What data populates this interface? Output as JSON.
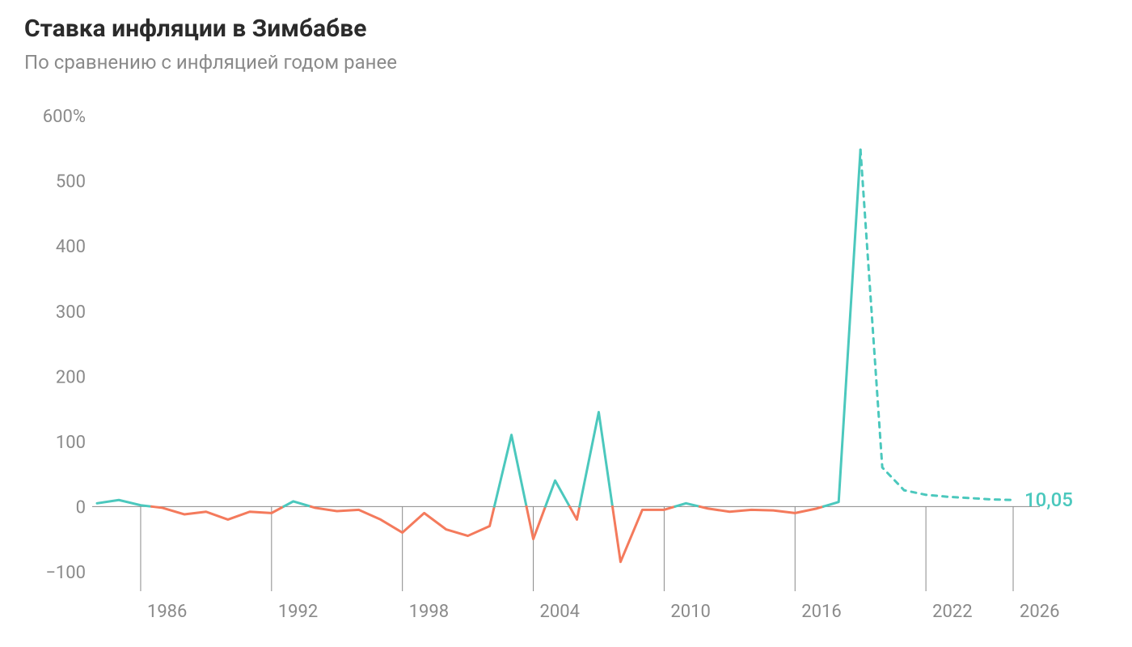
{
  "title": "Ставка инфляции в Зимбабве",
  "subtitle": "По сравнению с инфляцией годом ранее",
  "chart": {
    "type": "line",
    "background_color": "#ffffff",
    "colors": {
      "positive": "#4bc8bd",
      "negative": "#f47a5c",
      "projection": "#4bc8bd",
      "axis": "#8a8a8a",
      "text": "#8a8a8a",
      "title_text": "#2b2b2b"
    },
    "stroke_width": 3,
    "projection_dash": "6,7",
    "x": {
      "min": 1984,
      "max": 2027,
      "ticks": [
        1986,
        1992,
        1998,
        2004,
        2010,
        2016,
        2022,
        2026
      ]
    },
    "y": {
      "min": -130,
      "max": 640,
      "zero_line": 0,
      "ticks": [
        -100,
        0,
        100,
        200,
        300,
        400,
        500,
        600
      ],
      "tick_suffix_first": "%"
    },
    "end_annotation": {
      "label": "10,05",
      "value": 10.05,
      "color": "#4bc8bd"
    },
    "data": [
      {
        "year": 1984,
        "value": 5
      },
      {
        "year": 1985,
        "value": 10
      },
      {
        "year": 1986,
        "value": 2
      },
      {
        "year": 1987,
        "value": -2
      },
      {
        "year": 1988,
        "value": -12
      },
      {
        "year": 1989,
        "value": -8
      },
      {
        "year": 1990,
        "value": -20
      },
      {
        "year": 1991,
        "value": -8
      },
      {
        "year": 1992,
        "value": -10
      },
      {
        "year": 1993,
        "value": 8
      },
      {
        "year": 1994,
        "value": -2
      },
      {
        "year": 1995,
        "value": -7
      },
      {
        "year": 1996,
        "value": -5
      },
      {
        "year": 1997,
        "value": -20
      },
      {
        "year": 1998,
        "value": -40
      },
      {
        "year": 1999,
        "value": -10
      },
      {
        "year": 2000,
        "value": -35
      },
      {
        "year": 2001,
        "value": -45
      },
      {
        "year": 2002,
        "value": -30
      },
      {
        "year": 2003,
        "value": 110
      },
      {
        "year": 2004,
        "value": -50
      },
      {
        "year": 2005,
        "value": 40
      },
      {
        "year": 2006,
        "value": -20
      },
      {
        "year": 2007,
        "value": 145
      },
      {
        "year": 2008,
        "value": -85
      },
      {
        "year": 2009,
        "value": -5
      },
      {
        "year": 2010,
        "value": -5
      },
      {
        "year": 2011,
        "value": 5
      },
      {
        "year": 2012,
        "value": -3
      },
      {
        "year": 2013,
        "value": -8
      },
      {
        "year": 2014,
        "value": -5
      },
      {
        "year": 2015,
        "value": -6
      },
      {
        "year": 2016,
        "value": -10
      },
      {
        "year": 2017,
        "value": -3
      },
      {
        "year": 2018,
        "value": 7
      },
      {
        "year": 2019,
        "value": 548
      }
    ],
    "projection": [
      {
        "year": 2019,
        "value": 548
      },
      {
        "year": 2020,
        "value": 60
      },
      {
        "year": 2021,
        "value": 25
      },
      {
        "year": 2022,
        "value": 18
      },
      {
        "year": 2023,
        "value": 15
      },
      {
        "year": 2024,
        "value": 13
      },
      {
        "year": 2025,
        "value": 11
      },
      {
        "year": 2026,
        "value": 10.05
      }
    ],
    "fontsize": {
      "title": 30,
      "subtitle": 24,
      "ticks": 22,
      "annotation": 24
    }
  }
}
